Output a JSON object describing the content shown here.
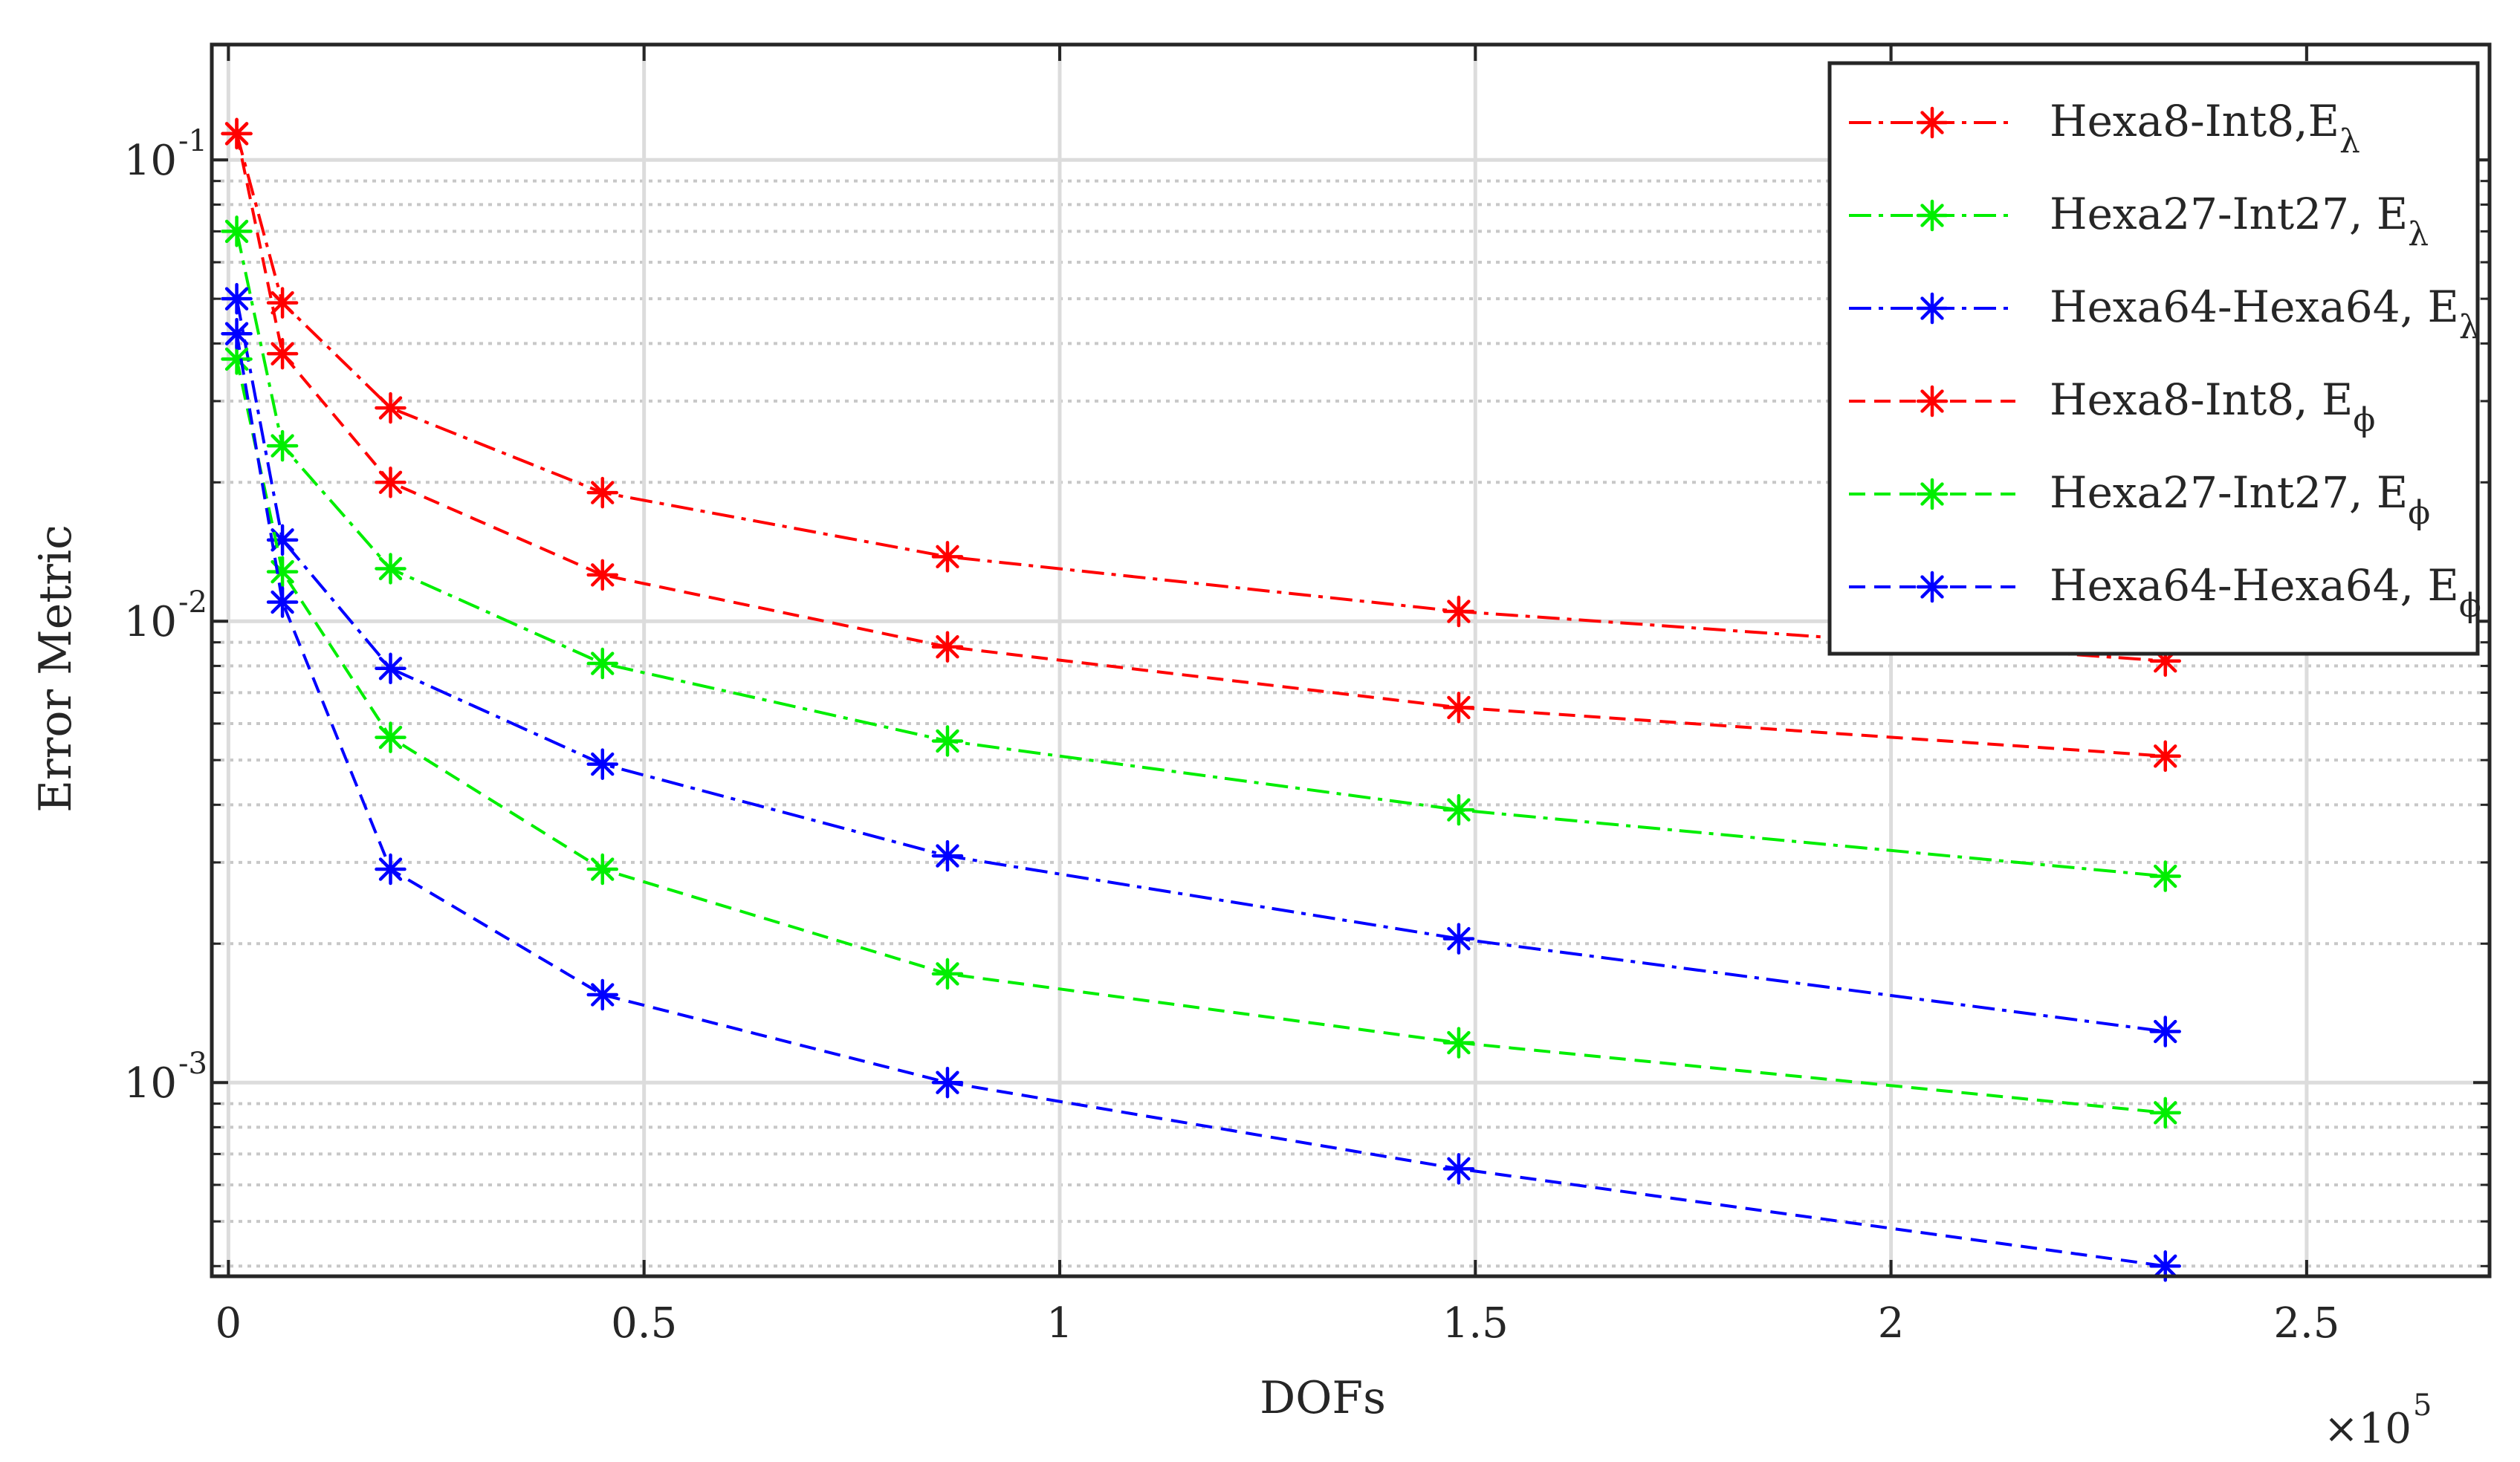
{
  "chart_data": {
    "type": "line",
    "title": "",
    "xlabel": "DOFs",
    "ylabel": "Error Metric",
    "x_exponent_label": "×10",
    "x_exponent_power": "5",
    "xlim": [
      -0.02,
      2.72
    ],
    "ylim_log10": [
      -3.42,
      -0.75
    ],
    "x_ticks": [
      0,
      0.5,
      1,
      1.5,
      2,
      2.5
    ],
    "x_tick_labels": [
      "0",
      "0.5",
      "1",
      "1.5",
      "2",
      "2.5"
    ],
    "y_ticks": [
      {
        "value": 0.1,
        "base": "10",
        "exp": "-1"
      },
      {
        "value": 0.01,
        "base": "10",
        "exp": "-2"
      },
      {
        "value": 0.001,
        "base": "10",
        "exp": "-3"
      }
    ],
    "grid": true,
    "minor_grid": true,
    "legend_position": "top-right",
    "x": [
      0.01,
      0.065,
      0.195,
      0.45,
      0.865,
      1.48,
      2.33
    ],
    "series": [
      {
        "name": "Hexa8-Int8,",
        "subscript": "λ",
        "symbol": "E",
        "color": "#ff0000",
        "linestyle": "dashdot",
        "values": [
          0.114,
          0.049,
          0.029,
          0.019,
          0.0138,
          0.0105,
          0.0082
        ]
      },
      {
        "name": "Hexa27-Int27, ",
        "subscript": "λ",
        "symbol": "E",
        "color": "#00ee00",
        "linestyle": "dashdot",
        "values": [
          0.07,
          0.024,
          0.013,
          0.0081,
          0.0055,
          0.0039,
          0.0028
        ]
      },
      {
        "name": "Hexa64-Hexa64, ",
        "subscript": "λ",
        "symbol": "E",
        "color": "#0000ff",
        "linestyle": "dashdot",
        "values": [
          0.05,
          0.015,
          0.0079,
          0.0049,
          0.0031,
          0.00205,
          0.00129
        ]
      },
      {
        "name": "Hexa8-Int8, ",
        "subscript": "ϕ",
        "symbol": "E",
        "color": "#ff0000",
        "linestyle": "dashed",
        "values": [
          0.114,
          0.038,
          0.02,
          0.0126,
          0.0088,
          0.0065,
          0.0051
        ]
      },
      {
        "name": "Hexa27-Int27, ",
        "subscript": "ϕ",
        "symbol": "E",
        "color": "#00ee00",
        "linestyle": "dashed",
        "values": [
          0.037,
          0.0128,
          0.0056,
          0.0029,
          0.00172,
          0.00122,
          0.00086
        ]
      },
      {
        "name": "Hexa64-Hexa64, ",
        "subscript": "ϕ",
        "symbol": "E",
        "color": "#0000ff",
        "linestyle": "dashed",
        "values": [
          0.042,
          0.011,
          0.0029,
          0.00155,
          0.001,
          0.00065,
          0.0004
        ]
      }
    ]
  }
}
